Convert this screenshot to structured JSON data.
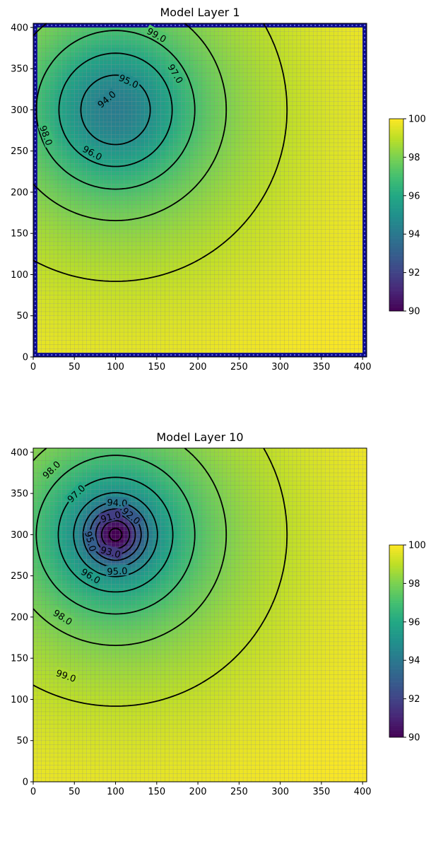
{
  "chart_data": [
    {
      "type": "heatmap",
      "title": "Model Layer 1",
      "xlim": [
        0,
        405
      ],
      "ylim": [
        0,
        405
      ],
      "x_ticks": [
        0,
        50,
        100,
        150,
        200,
        250,
        300,
        350,
        400
      ],
      "y_ticks": [
        0,
        50,
        100,
        150,
        200,
        250,
        300,
        350,
        400
      ],
      "grid_cells": 81,
      "colormap": "viridis",
      "clim": [
        90,
        100
      ],
      "colorbar_ticks": [
        90,
        92,
        94,
        96,
        98,
        100
      ],
      "boundary_cells_color": "#0b0b8c",
      "well": {
        "x": 100,
        "y": 300
      },
      "contour_levels": [
        94,
        95,
        96,
        97,
        98,
        99
      ],
      "contour_labels": [
        {
          "level": 99,
          "text": "99.0",
          "x": 150,
          "y": 391
        },
        {
          "level": 97,
          "text": "97.0",
          "x": 173,
          "y": 344
        },
        {
          "level": 95,
          "text": "95.0",
          "x": 116,
          "y": 335
        },
        {
          "level": 94,
          "text": "94.0",
          "x": 89,
          "y": 313
        },
        {
          "level": 98,
          "text": "98.0",
          "x": 16,
          "y": 269
        },
        {
          "level": 96,
          "text": "96.0",
          "x": 72,
          "y": 248
        }
      ]
    },
    {
      "type": "heatmap",
      "title": "Model Layer 10",
      "xlim": [
        0,
        405
      ],
      "ylim": [
        0,
        405
      ],
      "x_ticks": [
        0,
        50,
        100,
        150,
        200,
        250,
        300,
        350,
        400
      ],
      "y_ticks": [
        0,
        50,
        100,
        150,
        200,
        250,
        300,
        350,
        400
      ],
      "grid_cells": 81,
      "colormap": "viridis",
      "clim": [
        90,
        100
      ],
      "colorbar_ticks": [
        90,
        92,
        94,
        96,
        98,
        100
      ],
      "well": {
        "x": 100,
        "y": 300
      },
      "contour_levels": [
        90,
        91,
        92,
        93,
        94,
        95,
        96,
        97,
        98,
        99
      ],
      "contour_labels": [
        {
          "level": 98,
          "text": "98.0",
          "x": 22,
          "y": 379
        },
        {
          "level": 97,
          "text": "97.0",
          "x": 52,
          "y": 350
        },
        {
          "level": 94,
          "text": "94.0",
          "x": 102,
          "y": 339
        },
        {
          "level": 92,
          "text": "92.0",
          "x": 119,
          "y": 323
        },
        {
          "level": 91,
          "text": "91.0",
          "x": 94,
          "y": 322
        },
        {
          "level": 95,
          "text": "95.0",
          "x": 70,
          "y": 292
        },
        {
          "level": 93,
          "text": "93.0",
          "x": 94,
          "y": 279
        },
        {
          "level": 96,
          "text": "96.0",
          "x": 70,
          "y": 250
        },
        {
          "level": 95,
          "text": "95.0",
          "x": 102,
          "y": 256
        },
        {
          "level": 98,
          "text": "98.0",
          "x": 36,
          "y": 200
        },
        {
          "level": 99,
          "text": "99.0",
          "x": 40,
          "y": 129
        }
      ]
    }
  ]
}
